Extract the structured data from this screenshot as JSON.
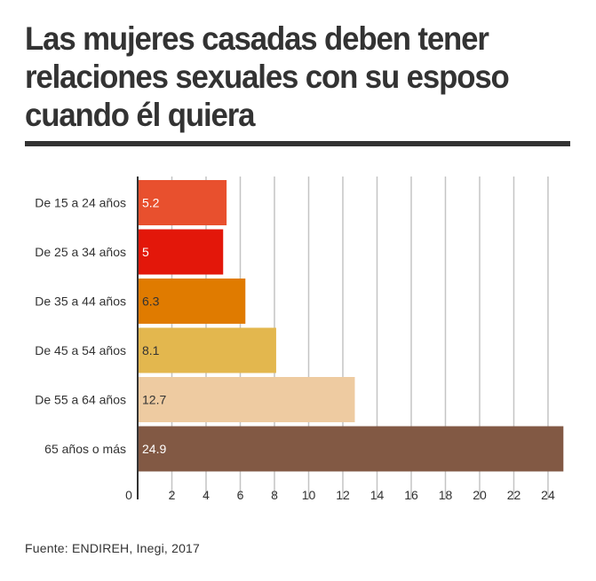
{
  "title": "Las mujeres casadas deben tener relaciones sexuales con su esposo cuando él quiera",
  "source": "Fuente: ENDIREH, Inegi, 2017",
  "chart_data": {
    "type": "bar",
    "orientation": "horizontal",
    "title": "Las mujeres casadas deben tener relaciones sexuales con su esposo cuando él quiera",
    "categories": [
      "De 15 a 24 años",
      "De 25 a 34 años",
      "De 35 a 44 años",
      "De 45 a 54 años",
      "De 55 a 64 años",
      "65 años o más"
    ],
    "values": [
      5.2,
      5,
      6.3,
      8.1,
      12.7,
      24.9
    ],
    "value_labels": [
      "5.2",
      "5",
      "6.3",
      "8.1",
      "12.7",
      "24.9"
    ],
    "colors": [
      "#e8502e",
      "#e3170a",
      "#e07b00",
      "#e3b74e",
      "#eecba1",
      "#825944"
    ],
    "label_colors": [
      "#ffffff",
      "#ffffff",
      "#333333",
      "#333333",
      "#333333",
      "#ffffff"
    ],
    "xticks": [
      0,
      2,
      4,
      6,
      8,
      10,
      12,
      14,
      16,
      18,
      20,
      22,
      24
    ],
    "xlim": [
      0,
      25.3
    ],
    "grid": true,
    "xlabel": "",
    "ylabel": ""
  }
}
